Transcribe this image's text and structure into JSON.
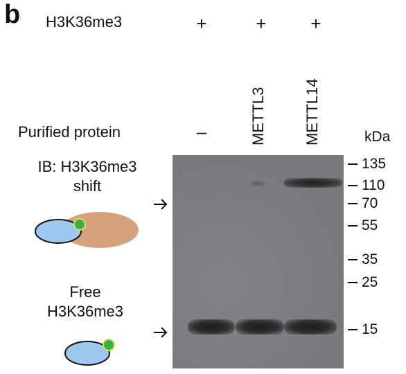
{
  "panel_label": "b",
  "rows": {
    "treatment_label": "H3K36me3",
    "treatment_marks": [
      "+",
      "+",
      "+"
    ],
    "protein_label": "Purified protein",
    "protein_marks": [
      "–"
    ]
  },
  "lanes": [
    "METTL3",
    "METTL14"
  ],
  "kda_label": "kDa",
  "markers": [
    "135",
    "110",
    "70",
    "55",
    "35",
    "25",
    "15"
  ],
  "shift": {
    "line1": "IB: H3K36me3",
    "line2": "shift"
  },
  "free": {
    "line1": "Free",
    "line2": "H3K36me3"
  },
  "colors": {
    "blot": "#7c7e83",
    "band": "#2b2b2b",
    "histone_fill": "#9cc7ee",
    "mark_dot": "#2fb34a",
    "mark_ring": "#d9e24a",
    "protein_fill": "#d6a27c"
  }
}
